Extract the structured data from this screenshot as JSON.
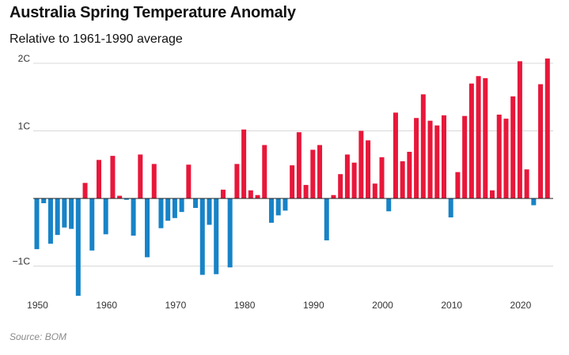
{
  "title": "Australia Spring Temperature Anomaly",
  "subtitle": "Relative to 1961-1990 average",
  "source": "Source: BOM",
  "colors": {
    "positive": "#e8173a",
    "negative": "#1783c7",
    "grid": "#d8d8d8",
    "zero": "#222222"
  },
  "chart_data": {
    "type": "bar",
    "title": "Australia Spring Temperature Anomaly",
    "subtitle": "Relative to 1961-1990 average",
    "xlabel": "",
    "ylabel": "",
    "ylim": [
      -1.45,
      2.1
    ],
    "y_ticks": [
      {
        "value": 2,
        "label": "2C"
      },
      {
        "value": 1,
        "label": "1C"
      },
      {
        "value": -1,
        "label": "−1C"
      }
    ],
    "x_ticks": [
      1950,
      1960,
      1970,
      1980,
      1990,
      2000,
      2010,
      2020
    ],
    "grid": true,
    "categories": [
      1950,
      1951,
      1952,
      1953,
      1954,
      1955,
      1956,
      1957,
      1958,
      1959,
      1960,
      1961,
      1962,
      1963,
      1964,
      1965,
      1966,
      1967,
      1968,
      1969,
      1970,
      1971,
      1972,
      1973,
      1974,
      1975,
      1976,
      1977,
      1978,
      1979,
      1980,
      1981,
      1982,
      1983,
      1984,
      1985,
      1986,
      1987,
      1988,
      1989,
      1990,
      1991,
      1992,
      1993,
      1994,
      1995,
      1996,
      1997,
      1998,
      1999,
      2000,
      2001,
      2002,
      2003,
      2004,
      2005,
      2006,
      2007,
      2008,
      2009,
      2010,
      2011,
      2012,
      2013,
      2014,
      2015,
      2016,
      2017,
      2018,
      2019,
      2020,
      2021,
      2022,
      2023,
      2024
    ],
    "values": [
      -0.75,
      -0.07,
      -0.67,
      -0.54,
      -0.43,
      -0.45,
      -1.44,
      0.23,
      -0.77,
      0.57,
      -0.53,
      0.63,
      0.04,
      -0.02,
      -0.55,
      0.65,
      -0.87,
      0.51,
      -0.44,
      -0.33,
      -0.29,
      -0.2,
      0.5,
      -0.14,
      -1.13,
      -0.39,
      -1.12,
      0.13,
      -1.02,
      0.51,
      1.02,
      0.12,
      0.05,
      0.79,
      -0.36,
      -0.25,
      -0.18,
      0.49,
      0.98,
      0.2,
      0.72,
      0.79,
      -0.62,
      0.05,
      0.36,
      0.65,
      0.53,
      1.0,
      0.86,
      0.22,
      0.61,
      -0.19,
      1.27,
      0.55,
      0.69,
      1.19,
      1.54,
      1.15,
      1.08,
      1.23,
      -0.28,
      0.39,
      1.22,
      1.7,
      1.81,
      1.78,
      0.12,
      1.24,
      1.18,
      1.51,
      2.03,
      0.43,
      -0.1,
      1.69,
      2.07
    ]
  }
}
